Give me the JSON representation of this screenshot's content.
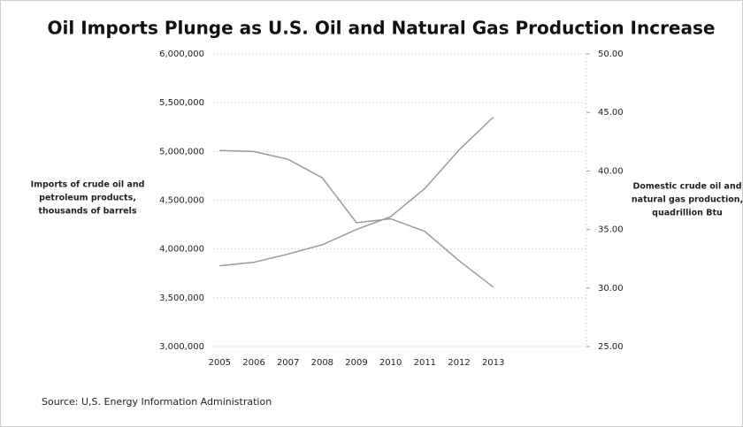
{
  "chart_data": {
    "type": "line",
    "title": "Oil Imports Plunge as U.S. Oil and Natural Gas Production Increase",
    "ylabel": [
      "Imports of crude oil and",
      "petroleum products,",
      "thousands of barrels"
    ],
    "y2label": [
      "Domestic crude oil and",
      "natural gas production,",
      "quadrillion Btu"
    ],
    "source": "Source: U,S. Energy Information Administration",
    "categories": [
      "2005",
      "2006",
      "2007",
      "2008",
      "2009",
      "2010",
      "2011",
      "2012",
      "2013"
    ],
    "series": [
      {
        "color": "#9a9a9a",
        "values": [
          5010000,
          5000000,
          4920000,
          4730000,
          4270000,
          4310000,
          4180000,
          3880000,
          3610000
        ]
      },
      {
        "color": "#9a9a9a",
        "axis": "y2",
        "values": [
          31.9,
          32.2,
          32.9,
          33.7,
          35.0,
          36.1,
          38.5,
          41.8,
          44.6
        ]
      }
    ],
    "ylim": [
      3000000,
      6000000
    ],
    "yticks": [
      {
        "value": 3000000,
        "label": "3,000,000"
      },
      {
        "value": 3500000,
        "label": "3,500,000"
      },
      {
        "value": 4000000,
        "label": "4,000,000"
      },
      {
        "value": 4500000,
        "label": "4,500,000"
      },
      {
        "value": 5000000,
        "label": "5,000,000"
      },
      {
        "value": 5500000,
        "label": "5,500,000"
      },
      {
        "value": 6000000,
        "label": "6,000,000"
      }
    ],
    "y2lim": [
      25,
      50
    ],
    "y2ticks": [
      {
        "value": 25,
        "label": "25.00"
      },
      {
        "value": 30,
        "label": "30.00"
      },
      {
        "value": 35,
        "label": "35.00"
      },
      {
        "value": 40,
        "label": "40.00"
      },
      {
        "value": 45,
        "label": "45.00"
      },
      {
        "value": 50,
        "label": "50.00"
      }
    ],
    "grid": true
  }
}
